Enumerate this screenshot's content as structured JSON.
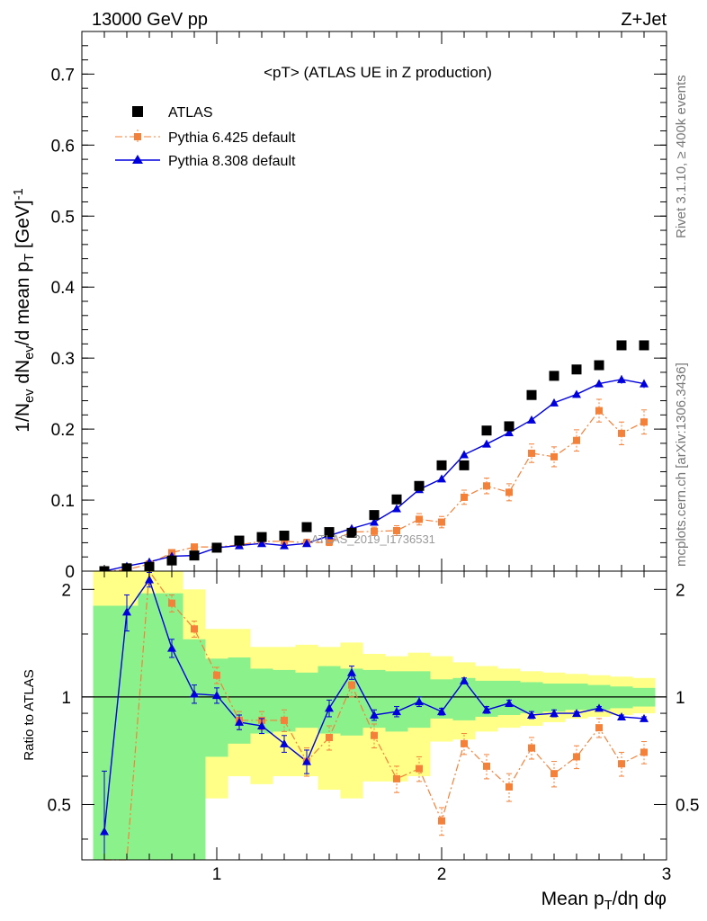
{
  "header": {
    "left": "13000 GeV pp",
    "right": "Z+Jet"
  },
  "side_text": {
    "rivet": "Rivet 3.1.10, ≥ 400k events",
    "mcplots": "mcplots.cern.ch [arXiv:1306.3436]"
  },
  "watermark": "ATLAS_2019_I1736531",
  "colors": {
    "atlas": "#000000",
    "pythia6": "#f4813a",
    "pythia8": "#0000dd",
    "band_inner": "#8bf28b",
    "band_outer": "#ffff88"
  },
  "chart_data": [
    {
      "type": "scatter",
      "title": "<pT> (ATLAS UE in Z production)",
      "ylabel": "1/N_ev dN_ev/d mean p_T [GeV]^-1",
      "xlim": [
        0.4,
        3.0
      ],
      "ylim": [
        0,
        0.76
      ],
      "yticks": [
        0,
        0.1,
        0.2,
        0.3,
        0.4,
        0.5,
        0.6,
        0.7
      ],
      "ytick_labels": [
        "0",
        "0.1",
        "0.2",
        "0.3",
        "0.4",
        "0.5",
        "0.6",
        "0.7"
      ],
      "x": [
        0.5,
        0.6,
        0.7,
        0.8,
        0.9,
        1.0,
        1.1,
        1.2,
        1.3,
        1.4,
        1.5,
        1.6,
        1.7,
        1.8,
        1.9,
        2.0,
        2.1,
        2.2,
        2.3,
        2.4,
        2.5,
        2.6,
        2.7,
        2.8,
        2.9
      ],
      "legend_position": "top-left",
      "series": [
        {
          "name": "ATLAS",
          "style": "square-markers",
          "values": [
            0.0,
            0.004,
            0.006,
            0.015,
            0.022,
            0.033,
            0.043,
            0.048,
            0.05,
            0.062,
            0.055,
            0.054,
            0.079,
            0.101,
            0.12,
            0.149,
            0.149,
            0.198,
            0.204,
            0.248,
            0.275,
            0.284,
            0.29,
            0.318,
            0.318
          ]
        },
        {
          "name": "Pythia 6.425 default",
          "style": "dash-dot-squares",
          "values": [
            0.0,
            0.002,
            0.01,
            0.026,
            0.034,
            0.034,
            0.037,
            0.042,
            0.042,
            0.04,
            0.041,
            0.055,
            0.056,
            0.057,
            0.073,
            0.069,
            0.104,
            0.12,
            0.111,
            0.166,
            0.161,
            0.184,
            0.226,
            0.194,
            0.21
          ],
          "errors": [
            0.0,
            0.001,
            0.002,
            0.003,
            0.003,
            0.003,
            0.004,
            0.004,
            0.005,
            0.005,
            0.005,
            0.006,
            0.006,
            0.007,
            0.008,
            0.008,
            0.01,
            0.011,
            0.012,
            0.013,
            0.014,
            0.015,
            0.016,
            0.016,
            0.017
          ]
        },
        {
          "name": "Pythia 8.308 default",
          "style": "solid-triangles",
          "values": [
            0.0,
            0.007,
            0.013,
            0.021,
            0.022,
            0.033,
            0.036,
            0.039,
            0.036,
            0.039,
            0.05,
            0.06,
            0.069,
            0.088,
            0.115,
            0.13,
            0.164,
            0.179,
            0.195,
            0.213,
            0.237,
            0.249,
            0.264,
            0.27,
            0.264
          ],
          "errors": [
            0.0,
            0.001,
            0.001,
            0.002,
            0.002,
            0.002,
            0.002,
            0.002,
            0.002,
            0.002,
            0.003,
            0.003,
            0.003,
            0.003,
            0.004,
            0.004,
            0.004,
            0.004,
            0.005,
            0.005,
            0.005,
            0.005,
            0.005,
            0.006,
            0.006
          ]
        }
      ]
    },
    {
      "type": "line",
      "ylabel": "Ratio to ATLAS",
      "xlabel": "Mean p_T/dη dφ",
      "xlim": [
        0.4,
        3.0
      ],
      "ylim": [
        0.35,
        2.25
      ],
      "xticks": [
        1,
        2,
        3
      ],
      "xtick_labels": [
        "1",
        "2",
        "3"
      ],
      "yticks": [
        0.5,
        1,
        2
      ],
      "ytick_labels": [
        "0.5",
        "1",
        "2"
      ],
      "reference_line": 1,
      "bins": [
        0.45,
        0.55,
        0.65,
        0.75,
        0.85,
        0.95,
        1.05,
        1.15,
        1.25,
        1.35,
        1.45,
        1.55,
        1.65,
        1.75,
        1.85,
        1.95,
        2.05,
        2.15,
        2.25,
        2.35,
        2.45,
        2.55,
        2.65,
        2.75,
        2.85,
        2.95
      ],
      "band_inner": {
        "low": [
          0.35,
          0.35,
          0.35,
          0.35,
          0.35,
          0.68,
          0.74,
          0.79,
          0.8,
          0.82,
          0.79,
          0.78,
          0.82,
          0.8,
          0.82,
          0.87,
          0.86,
          0.88,
          0.89,
          0.9,
          0.91,
          0.92,
          0.92,
          0.93,
          0.94
        ],
        "high": [
          1.8,
          1.8,
          1.95,
          1.95,
          1.45,
          1.28,
          1.29,
          1.2,
          1.19,
          1.17,
          1.22,
          1.2,
          1.19,
          1.18,
          1.18,
          1.12,
          1.13,
          1.11,
          1.11,
          1.1,
          1.09,
          1.09,
          1.08,
          1.07,
          1.06
        ]
      },
      "band_outer": {
        "low": [
          0.35,
          0.35,
          0.35,
          0.35,
          0.35,
          0.52,
          0.6,
          0.57,
          0.6,
          0.6,
          0.55,
          0.52,
          0.58,
          0.58,
          0.6,
          0.75,
          0.76,
          0.8,
          0.82,
          0.83,
          0.85,
          0.87,
          0.88,
          0.89,
          0.9
        ],
        "high": [
          2.25,
          2.25,
          2.25,
          2.25,
          2.0,
          1.55,
          1.55,
          1.38,
          1.38,
          1.4,
          1.38,
          1.42,
          1.32,
          1.3,
          1.33,
          1.3,
          1.25,
          1.22,
          1.2,
          1.18,
          1.17,
          1.16,
          1.15,
          1.14,
          1.13
        ]
      },
      "x": [
        0.5,
        0.6,
        0.7,
        0.8,
        0.9,
        1.0,
        1.1,
        1.2,
        1.3,
        1.4,
        1.5,
        1.6,
        1.7,
        1.8,
        1.9,
        2.0,
        2.1,
        2.2,
        2.3,
        2.4,
        2.5,
        2.6,
        2.7,
        2.8,
        2.9
      ],
      "series": [
        {
          "name": "Pythia 6.425 default",
          "values": [
            0.25,
            0.35,
            2.25,
            1.83,
            1.55,
            1.15,
            0.86,
            0.86,
            0.86,
            0.66,
            0.77,
            1.08,
            0.78,
            0.59,
            0.63,
            0.45,
            0.74,
            0.64,
            0.56,
            0.72,
            0.61,
            0.68,
            0.82,
            0.65,
            0.7
          ],
          "errors": [
            0.0,
            0.0,
            0.1,
            0.1,
            0.08,
            0.06,
            0.05,
            0.05,
            0.06,
            0.06,
            0.06,
            0.08,
            0.06,
            0.05,
            0.05,
            0.04,
            0.05,
            0.05,
            0.05,
            0.05,
            0.05,
            0.05,
            0.05,
            0.05,
            0.05
          ]
        },
        {
          "name": "Pythia 8.308 default",
          "values": [
            0.42,
            1.73,
            2.13,
            1.37,
            1.02,
            1.01,
            0.85,
            0.83,
            0.74,
            0.66,
            0.93,
            1.17,
            0.89,
            0.91,
            0.97,
            0.91,
            1.11,
            0.92,
            0.96,
            0.89,
            0.9,
            0.9,
            0.93,
            0.88,
            0.87
          ],
          "errors": [
            0.2,
            0.2,
            0.1,
            0.08,
            0.06,
            0.05,
            0.04,
            0.04,
            0.04,
            0.05,
            0.05,
            0.05,
            0.03,
            0.03,
            0.03,
            0.02,
            0.02,
            0.02,
            0.02,
            0.02,
            0.02,
            0.01,
            0.01,
            0.01,
            0.01
          ]
        }
      ]
    }
  ]
}
